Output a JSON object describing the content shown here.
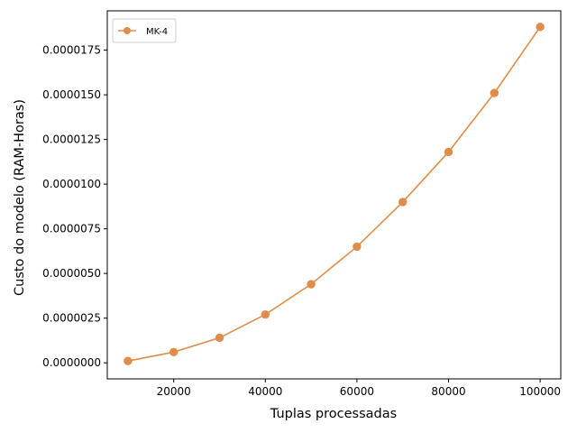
{
  "chart_data": {
    "type": "line",
    "xlabel": "Tuplas processadas",
    "ylabel": "Custo do modelo (RAM-Horas)",
    "xlim": [
      5500,
      104500
    ],
    "ylim": [
      -9e-07,
      1.97e-05
    ],
    "xticks": [
      20000,
      40000,
      60000,
      80000,
      100000
    ],
    "xtick_labels": [
      "20000",
      "40000",
      "60000",
      "80000",
      "100000"
    ],
    "yticks": [
      0,
      2.5e-06,
      5e-06,
      7.5e-06,
      1e-05,
      1.25e-05,
      1.5e-05,
      1.75e-05
    ],
    "ytick_labels": [
      "0.0000000",
      "0.0000025",
      "0.0000050",
      "0.0000075",
      "0.0000100",
      "0.0000125",
      "0.0000150",
      "0.0000175"
    ],
    "grid": false,
    "legend_position": "top-left",
    "series": [
      {
        "name": "MK-4",
        "color": "#e08c4a",
        "marker": "circle",
        "x": [
          10000,
          20000,
          30000,
          40000,
          50000,
          60000,
          70000,
          80000,
          90000,
          100000
        ],
        "y": [
          1e-07,
          6e-07,
          1.4e-06,
          2.7e-06,
          4.4e-06,
          6.5e-06,
          9e-06,
          1.18e-05,
          1.51e-05,
          1.88e-05
        ]
      }
    ]
  }
}
